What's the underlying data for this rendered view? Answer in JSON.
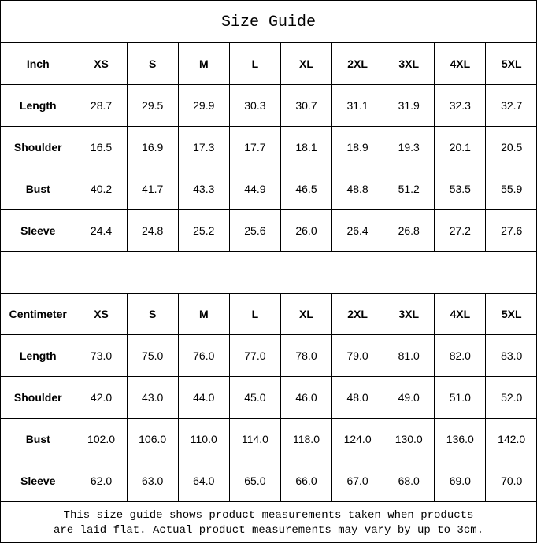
{
  "title": "Size Guide",
  "sizes": [
    "XS",
    "S",
    "M",
    "L",
    "XL",
    "2XL",
    "3XL",
    "4XL",
    "5XL"
  ],
  "tables": [
    {
      "unit": "Inch",
      "rows": [
        {
          "label": "Length",
          "values": [
            "28.7",
            "29.5",
            "29.9",
            "30.3",
            "30.7",
            "31.1",
            "31.9",
            "32.3",
            "32.7"
          ]
        },
        {
          "label": "Shoulder",
          "values": [
            "16.5",
            "16.9",
            "17.3",
            "17.7",
            "18.1",
            "18.9",
            "19.3",
            "20.1",
            "20.5"
          ]
        },
        {
          "label": "Bust",
          "values": [
            "40.2",
            "41.7",
            "43.3",
            "44.9",
            "46.5",
            "48.8",
            "51.2",
            "53.5",
            "55.9"
          ]
        },
        {
          "label": "Sleeve",
          "values": [
            "24.4",
            "24.8",
            "25.2",
            "25.6",
            "26.0",
            "26.4",
            "26.8",
            "27.2",
            "27.6"
          ]
        }
      ]
    },
    {
      "unit": "Centimeter",
      "rows": [
        {
          "label": "Length",
          "values": [
            "73.0",
            "75.0",
            "76.0",
            "77.0",
            "78.0",
            "79.0",
            "81.0",
            "82.0",
            "83.0"
          ]
        },
        {
          "label": "Shoulder",
          "values": [
            "42.0",
            "43.0",
            "44.0",
            "45.0",
            "46.0",
            "48.0",
            "49.0",
            "51.0",
            "52.0"
          ]
        },
        {
          "label": "Bust",
          "values": [
            "102.0",
            "106.0",
            "110.0",
            "114.0",
            "118.0",
            "124.0",
            "130.0",
            "136.0",
            "142.0"
          ]
        },
        {
          "label": "Sleeve",
          "values": [
            "62.0",
            "63.0",
            "64.0",
            "65.0",
            "66.0",
            "67.0",
            "68.0",
            "69.0",
            "70.0"
          ]
        }
      ]
    }
  ],
  "note": {
    "line1": "This size guide shows product measurements taken when products",
    "line2": "are laid flat. Actual product measurements may vary by up to 3cm."
  }
}
